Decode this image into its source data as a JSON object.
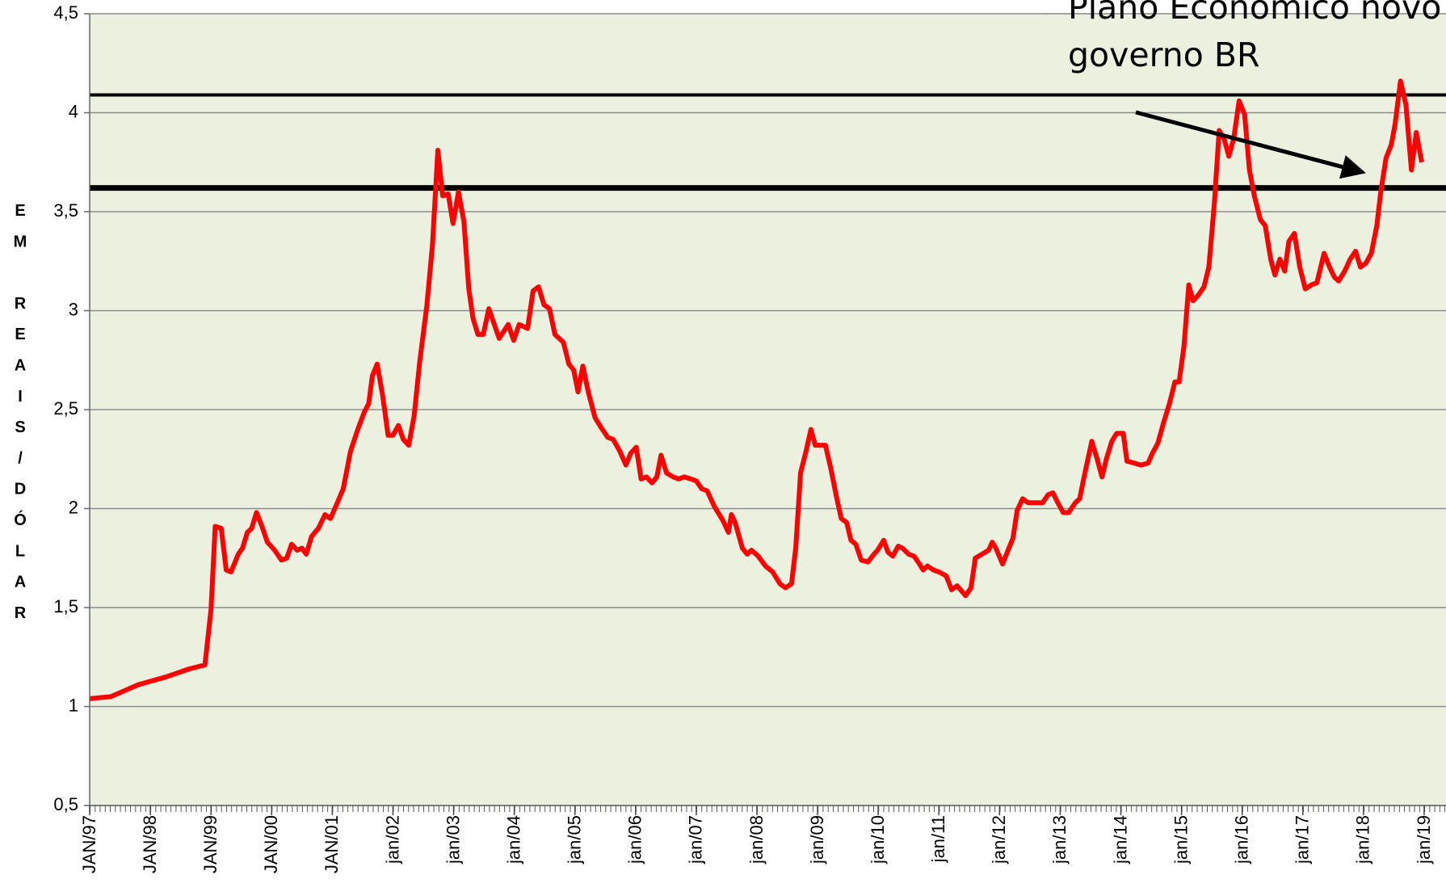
{
  "chart_data": {
    "type": "line",
    "y_label": "EM REAIS/DÓLAR",
    "annotation": [
      "Plano Econômico novo",
      "governo BR"
    ],
    "color": "#ff0000",
    "background": "#ebf1de",
    "grid": true,
    "xlim": [
      1997,
      2019.36
    ],
    "ylim": [
      0.5,
      4.5
    ],
    "yticks": [
      {
        "value": 0.5,
        "label": "0,5"
      },
      1,
      {
        "value": 1.5,
        "label": "1,5"
      },
      2,
      {
        "value": 2.5,
        "label": "2,5"
      },
      3,
      {
        "value": 3.5,
        "label": "3,5"
      },
      4,
      {
        "value": 4.5,
        "label": "4,5"
      }
    ],
    "xticks": [
      {
        "value": 1997,
        "label": "JAN/97"
      },
      {
        "value": 1998,
        "label": "JAN/98"
      },
      {
        "value": 1999,
        "label": "JAN/99"
      },
      {
        "value": 2000,
        "label": "JAN/00"
      },
      {
        "value": 2001,
        "label": "JAN/01"
      },
      {
        "value": 2002,
        "label": "jan/02"
      },
      {
        "value": 2003,
        "label": "jan/03"
      },
      {
        "value": 2004,
        "label": "jan/04"
      },
      {
        "value": 2005,
        "label": "jan/05"
      },
      {
        "value": 2006,
        "label": "jan/06"
      },
      {
        "value": 2007,
        "label": "jan/07"
      },
      {
        "value": 2008,
        "label": "jan/08"
      },
      {
        "value": 2009,
        "label": "jan/09"
      },
      {
        "value": 2010,
        "label": "jan/10"
      },
      {
        "value": 2011,
        "label": "jan/11"
      },
      {
        "value": 2012,
        "label": "jan/12"
      },
      {
        "value": 2013,
        "label": "jan/13"
      },
      {
        "value": 2014,
        "label": "jan/14"
      },
      {
        "value": 2015,
        "label": "jan/15"
      },
      {
        "value": 2016,
        "label": "jan/16"
      },
      {
        "value": 2017,
        "label": "jan/17"
      },
      {
        "value": 2018,
        "label": "jan/18"
      },
      {
        "value": 2019,
        "label": "jan/19"
      }
    ],
    "reference_lines": [
      4.09,
      3.62
    ],
    "x": [
      1997.0,
      1997.35,
      1997.8,
      1998.26,
      1998.64,
      1998.9,
      1999.0,
      1999.07,
      1999.17,
      1999.25,
      1999.33,
      1999.45,
      1999.52,
      1999.6,
      1999.67,
      1999.75,
      1999.84,
      1999.93,
      2000.05,
      2000.16,
      2000.25,
      2000.33,
      2000.42,
      2000.5,
      2000.57,
      2000.66,
      2000.77,
      2000.88,
      2000.97,
      2001.07,
      2001.18,
      2001.3,
      2001.42,
      2001.53,
      2001.6,
      2001.66,
      2001.74,
      2001.83,
      2001.92,
      2002.0,
      2002.09,
      2002.17,
      2002.26,
      2002.35,
      2002.44,
      2002.56,
      2002.65,
      2002.74,
      2002.82,
      2002.91,
      2002.99,
      2003.08,
      2003.17,
      2003.25,
      2003.32,
      2003.4,
      2003.49,
      2003.58,
      2003.75,
      2003.9,
      2003.99,
      2004.08,
      2004.22,
      2004.31,
      2004.4,
      2004.49,
      2004.58,
      2004.67,
      2004.81,
      2004.9,
      2004.98,
      2005.05,
      2005.13,
      2005.22,
      2005.33,
      2005.43,
      2005.54,
      2005.63,
      2005.74,
      2005.84,
      2005.92,
      2006.01,
      2006.09,
      2006.18,
      2006.27,
      2006.35,
      2006.42,
      2006.51,
      2006.62,
      2006.71,
      2006.8,
      2006.91,
      2007.0,
      2007.09,
      2007.18,
      2007.3,
      2007.44,
      2007.53,
      2007.58,
      2007.64,
      2007.76,
      2007.84,
      2007.91,
      2008.02,
      2008.14,
      2008.26,
      2008.38,
      2008.47,
      2008.57,
      2008.64,
      2008.72,
      2008.81,
      2008.89,
      2008.96,
      2009.13,
      2009.22,
      2009.31,
      2009.39,
      2009.48,
      2009.55,
      2009.63,
      2009.72,
      2009.83,
      2009.93,
      2009.99,
      2010.09,
      2010.16,
      2010.24,
      2010.33,
      2010.4,
      2010.5,
      2010.59,
      2010.68,
      2010.74,
      2010.81,
      2010.91,
      2011.0,
      2011.12,
      2011.21,
      2011.3,
      2011.44,
      2011.53,
      2011.6,
      2011.71,
      2011.82,
      2011.88,
      2011.94,
      2012.05,
      2012.14,
      2012.22,
      2012.29,
      2012.38,
      2012.47,
      2012.63,
      2012.71,
      2012.8,
      2012.88,
      2012.96,
      2013.05,
      2013.14,
      2013.25,
      2013.32,
      2013.4,
      2013.52,
      2013.61,
      2013.69,
      2013.76,
      2013.85,
      2013.93,
      2014.04,
      2014.1,
      2014.22,
      2014.33,
      2014.45,
      2014.52,
      2014.61,
      2014.7,
      2014.8,
      2014.89,
      2014.96,
      2015.04,
      2015.12,
      2015.19,
      2015.28,
      2015.37,
      2015.45,
      2015.54,
      2015.62,
      2015.7,
      2015.78,
      2015.86,
      2015.95,
      2016.04,
      2016.12,
      2016.2,
      2016.3,
      2016.38,
      2016.47,
      2016.54,
      2016.62,
      2016.7,
      2016.77,
      2016.86,
      2016.95,
      2017.04,
      2017.14,
      2017.23,
      2017.35,
      2017.44,
      2017.52,
      2017.59,
      2017.69,
      2017.78,
      2017.87,
      2017.95,
      2018.04,
      2018.13,
      2018.22,
      2018.28,
      2018.37,
      2018.46,
      2018.52,
      2018.61,
      2018.7,
      2018.79,
      2018.87,
      2018.96
    ],
    "values": [
      1.04,
      1.05,
      1.11,
      1.15,
      1.19,
      1.21,
      1.49,
      1.91,
      1.9,
      1.69,
      1.68,
      1.77,
      1.8,
      1.88,
      1.9,
      1.98,
      1.91,
      1.83,
      1.79,
      1.74,
      1.75,
      1.82,
      1.79,
      1.8,
      1.77,
      1.86,
      1.9,
      1.97,
      1.95,
      2.02,
      2.1,
      2.29,
      2.4,
      2.49,
      2.53,
      2.67,
      2.73,
      2.57,
      2.37,
      2.37,
      2.42,
      2.35,
      2.32,
      2.47,
      2.74,
      3.03,
      3.33,
      3.81,
      3.58,
      3.59,
      3.44,
      3.6,
      3.45,
      3.11,
      2.96,
      2.88,
      2.88,
      3.01,
      2.86,
      2.93,
      2.85,
      2.93,
      2.91,
      3.1,
      3.12,
      3.03,
      3.01,
      2.88,
      2.84,
      2.73,
      2.7,
      2.59,
      2.72,
      2.59,
      2.46,
      2.41,
      2.36,
      2.35,
      2.29,
      2.22,
      2.28,
      2.31,
      2.15,
      2.16,
      2.13,
      2.16,
      2.27,
      2.18,
      2.16,
      2.15,
      2.16,
      2.15,
      2.14,
      2.1,
      2.09,
      2.01,
      1.94,
      1.88,
      1.97,
      1.93,
      1.8,
      1.77,
      1.79,
      1.76,
      1.71,
      1.68,
      1.62,
      1.6,
      1.62,
      1.8,
      2.18,
      2.29,
      2.4,
      2.32,
      2.32,
      2.2,
      2.06,
      1.95,
      1.93,
      1.84,
      1.82,
      1.74,
      1.73,
      1.77,
      1.79,
      1.84,
      1.78,
      1.76,
      1.81,
      1.8,
      1.77,
      1.76,
      1.72,
      1.69,
      1.71,
      1.69,
      1.68,
      1.66,
      1.59,
      1.61,
      1.56,
      1.6,
      1.75,
      1.77,
      1.79,
      1.83,
      1.8,
      1.72,
      1.79,
      1.85,
      1.99,
      2.05,
      2.03,
      2.03,
      2.03,
      2.07,
      2.08,
      2.03,
      1.98,
      1.98,
      2.03,
      2.05,
      2.17,
      2.34,
      2.25,
      2.16,
      2.25,
      2.34,
      2.38,
      2.38,
      2.24,
      2.23,
      2.22,
      2.23,
      2.28,
      2.33,
      2.43,
      2.53,
      2.64,
      2.64,
      2.82,
      3.13,
      3.05,
      3.08,
      3.12,
      3.22,
      3.54,
      3.91,
      3.87,
      3.78,
      3.87,
      4.06,
      3.99,
      3.71,
      3.58,
      3.46,
      3.43,
      3.26,
      3.18,
      3.26,
      3.2,
      3.35,
      3.39,
      3.22,
      3.11,
      3.13,
      3.14,
      3.29,
      3.22,
      3.17,
      3.15,
      3.2,
      3.26,
      3.3,
      3.22,
      3.24,
      3.29,
      3.43,
      3.59,
      3.77,
      3.84,
      3.94,
      4.16,
      4.04,
      3.71,
      3.9,
      3.75
    ]
  }
}
